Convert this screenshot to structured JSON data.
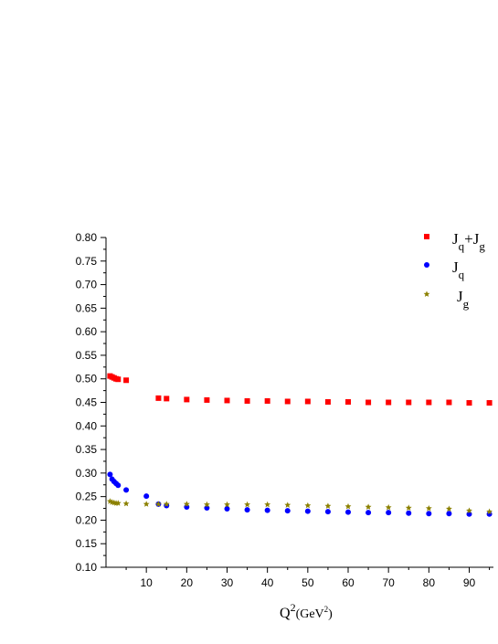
{
  "chart_data": {
    "type": "scatter",
    "title": "",
    "xlabel": {
      "base": "Q",
      "exp": "2",
      "unit_open": "(GeV",
      "unit_exp": "2",
      "unit_close": ")"
    },
    "ylabel": "",
    "xlim": [
      0,
      96
    ],
    "ylim": [
      0.1,
      0.8
    ],
    "x_ticks": [
      10,
      20,
      30,
      40,
      50,
      60,
      70,
      80,
      90
    ],
    "x_tick_labels": [
      "10",
      "20",
      "30",
      "40",
      "50",
      "60",
      "70",
      "80",
      "90"
    ],
    "y_ticks": [
      0.1,
      0.15,
      0.2,
      0.25,
      0.3,
      0.35,
      0.4,
      0.45,
      0.5,
      0.55,
      0.6,
      0.65,
      0.7,
      0.75,
      0.8
    ],
    "y_tick_labels": [
      "0.10",
      "0.15",
      "0.20",
      "0.25",
      "0.30",
      "0.35",
      "0.40",
      "0.45",
      "0.50",
      "0.55",
      "0.60",
      "0.65",
      "0.70",
      "0.75",
      "0.80"
    ],
    "legend_position": "top-right",
    "series": [
      {
        "name": {
          "base": "J",
          "sub1": "q",
          "mid": "+J",
          "sub2": "g"
        },
        "marker": "square",
        "color": "#ff0000",
        "x": [
          1,
          1.5,
          2,
          2.5,
          3,
          5,
          13,
          15,
          20,
          25,
          30,
          35,
          40,
          45,
          50,
          55,
          60,
          65,
          70,
          75,
          80,
          85,
          90,
          95
        ],
        "y": [
          0.506,
          0.504,
          0.502,
          0.5,
          0.499,
          0.497,
          0.459,
          0.458,
          0.456,
          0.455,
          0.454,
          0.453,
          0.453,
          0.452,
          0.452,
          0.451,
          0.451,
          0.45,
          0.45,
          0.45,
          0.45,
          0.45,
          0.449,
          0.449
        ]
      },
      {
        "name": {
          "base": "J",
          "sub1": "q"
        },
        "marker": "circle",
        "color": "#0000ff",
        "x": [
          1,
          1.5,
          2,
          2.5,
          3,
          5,
          10,
          13,
          15,
          20,
          25,
          30,
          35,
          40,
          45,
          50,
          55,
          60,
          65,
          70,
          75,
          80,
          85,
          90,
          95
        ],
        "y": [
          0.297,
          0.287,
          0.282,
          0.278,
          0.274,
          0.264,
          0.251,
          0.234,
          0.231,
          0.228,
          0.226,
          0.224,
          0.222,
          0.221,
          0.22,
          0.219,
          0.218,
          0.217,
          0.216,
          0.216,
          0.215,
          0.214,
          0.214,
          0.213,
          0.213
        ]
      },
      {
        "name": {
          "base": "J",
          "sub1": "g"
        },
        "marker": "star",
        "color": "#8b8000",
        "x": [
          1,
          1.5,
          2,
          2.5,
          3,
          5,
          10,
          13,
          15,
          20,
          25,
          30,
          35,
          40,
          45,
          50,
          55,
          60,
          65,
          70,
          75,
          80,
          85,
          90,
          95
        ],
        "y": [
          0.24,
          0.238,
          0.237,
          0.236,
          0.236,
          0.235,
          0.234,
          0.234,
          0.234,
          0.234,
          0.233,
          0.233,
          0.233,
          0.233,
          0.232,
          0.231,
          0.23,
          0.229,
          0.228,
          0.227,
          0.226,
          0.225,
          0.224,
          0.22,
          0.218
        ]
      }
    ]
  }
}
